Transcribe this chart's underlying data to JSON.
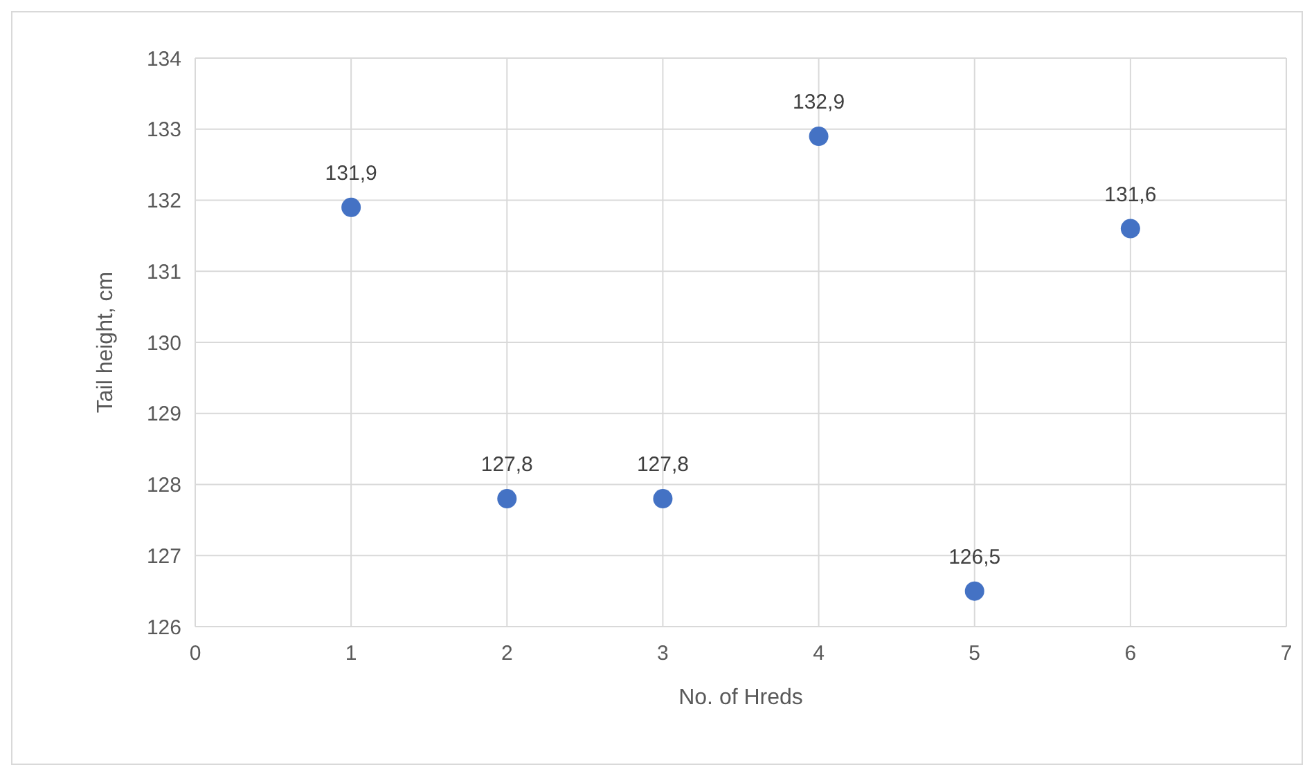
{
  "chart_data": {
    "type": "scatter",
    "xlabel": "No. of Hreds",
    "ylabel": "Tail height, cm",
    "x": [
      1,
      2,
      3,
      4,
      5,
      6
    ],
    "values": [
      131.9,
      127.8,
      127.8,
      132.9,
      126.5,
      131.6
    ],
    "value_labels": [
      "131,9",
      "127,8",
      "127,8",
      "132,9",
      "126,5",
      "131,6"
    ],
    "color": "#4472c4",
    "marker": "circle",
    "xlim": [
      0,
      7
    ],
    "xticks": [
      0,
      1,
      2,
      3,
      4,
      5,
      6,
      7
    ],
    "ylim": [
      126,
      134
    ],
    "yticks": [
      126,
      127,
      128,
      129,
      130,
      131,
      132,
      133,
      134
    ],
    "grid": true
  }
}
